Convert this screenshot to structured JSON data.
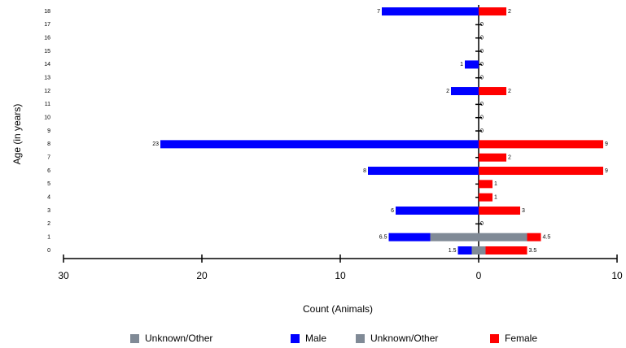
{
  "chart_data": {
    "type": "pyramid",
    "categories": [
      "0",
      "1",
      "2",
      "3",
      "4",
      "5",
      "6",
      "7",
      "8",
      "9",
      "10",
      "11",
      "12",
      "13",
      "14",
      "15",
      "16",
      "17",
      "18"
    ],
    "series": [
      {
        "name": "Unknown/Other",
        "color": "#808a96",
        "side": "left",
        "values": [
          0.5,
          3.5,
          0,
          0,
          0,
          0,
          0,
          0,
          0,
          0,
          0,
          0,
          0,
          0,
          0,
          0,
          0,
          0,
          0
        ]
      },
      {
        "name": "Male",
        "color": "#0000ff",
        "side": "left",
        "values": [
          1,
          3,
          0,
          6,
          0,
          0,
          8,
          0,
          23,
          0,
          0,
          0,
          2,
          0,
          1,
          0,
          0,
          0,
          7
        ]
      },
      {
        "name": "Unknown/Other",
        "color": "#808a96",
        "side": "right",
        "values": [
          0.5,
          3.5,
          0,
          0,
          0,
          0,
          0,
          0,
          0,
          0,
          0,
          0,
          0,
          0,
          0,
          0,
          0,
          0,
          0
        ]
      },
      {
        "name": "Female",
        "color": "#ff0000",
        "side": "right",
        "values": [
          3,
          1,
          0,
          3,
          1,
          1,
          9,
          2,
          9,
          0,
          0,
          0,
          2,
          0,
          0,
          0,
          0,
          0,
          2
        ]
      }
    ],
    "totals": {
      "left": [
        1.5,
        6.5,
        null,
        6,
        null,
        null,
        8,
        null,
        23,
        null,
        null,
        null,
        2,
        null,
        1,
        null,
        null,
        null,
        7
      ],
      "right": [
        3.5,
        4.5,
        0,
        3,
        1,
        1,
        9,
        2,
        9,
        0,
        0,
        0,
        2,
        0,
        0,
        0,
        0,
        0,
        2
      ]
    },
    "xlim": [
      -30,
      10
    ],
    "xticks": [
      {
        "value": -30,
        "label": "30"
      },
      {
        "value": -20,
        "label": "20"
      },
      {
        "value": -10,
        "label": "10"
      },
      0,
      10
    ],
    "xlabel": "Count (Animals)",
    "ylabel": "Age (in years)"
  }
}
